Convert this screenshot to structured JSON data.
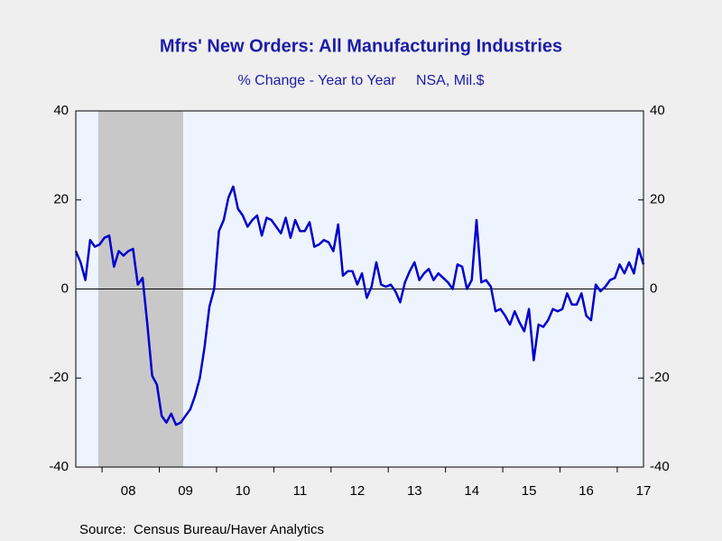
{
  "chart_data": {
    "type": "line",
    "title": "Mfrs' New Orders: All Manufacturing Industries",
    "subtitle": "% Change - Year to Year     NSA, Mil.$",
    "source": "Source:  Census Bureau/Haver Analytics",
    "categories": [
      null,
      null,
      null,
      null,
      null,
      null,
      null,
      null,
      null,
      null,
      null,
      "08",
      null,
      null,
      null,
      null,
      null,
      null,
      null,
      null,
      null,
      null,
      null,
      "09",
      null,
      null,
      null,
      null,
      null,
      null,
      null,
      null,
      null,
      null,
      null,
      "10",
      null,
      null,
      null,
      null,
      null,
      null,
      null,
      null,
      null,
      null,
      null,
      "11",
      null,
      null,
      null,
      null,
      null,
      null,
      null,
      null,
      null,
      null,
      null,
      "12",
      null,
      null,
      null,
      null,
      null,
      null,
      null,
      null,
      null,
      null,
      null,
      "13",
      null,
      null,
      null,
      null,
      null,
      null,
      null,
      null,
      null,
      null,
      null,
      "14",
      null,
      null,
      null,
      null,
      null,
      null,
      null,
      null,
      null,
      null,
      null,
      "15",
      null,
      null,
      null,
      null,
      null,
      null,
      null,
      null,
      null,
      null,
      null,
      "16",
      null,
      null,
      null,
      null,
      null,
      null,
      null,
      null,
      null,
      null,
      null,
      "17"
    ],
    "series": [
      {
        "name": "Mfrs' New Orders",
        "color": "#0000cc",
        "values": [
          8.5,
          6,
          2,
          11,
          9.5,
          10,
          11.5,
          12,
          5,
          8.5,
          7.5,
          8.5,
          9,
          1,
          2.5,
          -8,
          -19.5,
          -21.5,
          -28.5,
          -30,
          -28,
          -30.5,
          -30,
          -28.5,
          -27,
          -24,
          -20,
          -13,
          -4,
          0,
          13,
          15.5,
          20.5,
          23,
          18,
          16.5,
          14,
          15.5,
          16.5,
          12,
          16,
          15.5,
          14,
          12.5,
          16,
          11.5,
          15.5,
          13,
          13,
          15,
          9.5,
          10,
          11,
          10.5,
          8.5,
          14.5,
          3,
          4,
          4,
          1,
          3.5,
          -2,
          0.5,
          6,
          1,
          0.5,
          1,
          -0.5,
          -3,
          1.5,
          4,
          6,
          2,
          3.5,
          4.5,
          2,
          3.5,
          2.5,
          1.5,
          0,
          5.5,
          5,
          0,
          2,
          15.5,
          1.5,
          2,
          0.5,
          -5,
          -4.5,
          -6,
          -8,
          -5,
          -7.5,
          -9.5,
          -4.5,
          -16,
          -8,
          -8.5,
          -7,
          -4.5,
          -5,
          -4.5,
          -1,
          -3.5,
          -3.5,
          -1,
          -6,
          -7,
          1,
          -0.5,
          0.5,
          2,
          2.5,
          5.5,
          3.5,
          6,
          3.5,
          9,
          5.5
        ]
      }
    ],
    "ylim": [
      -40,
      40
    ],
    "yticks": [
      -40,
      -20,
      0,
      20,
      40
    ],
    "y2lim": [
      -40,
      40
    ],
    "y2ticks": [
      -40,
      -20,
      0,
      20,
      40
    ]
  }
}
